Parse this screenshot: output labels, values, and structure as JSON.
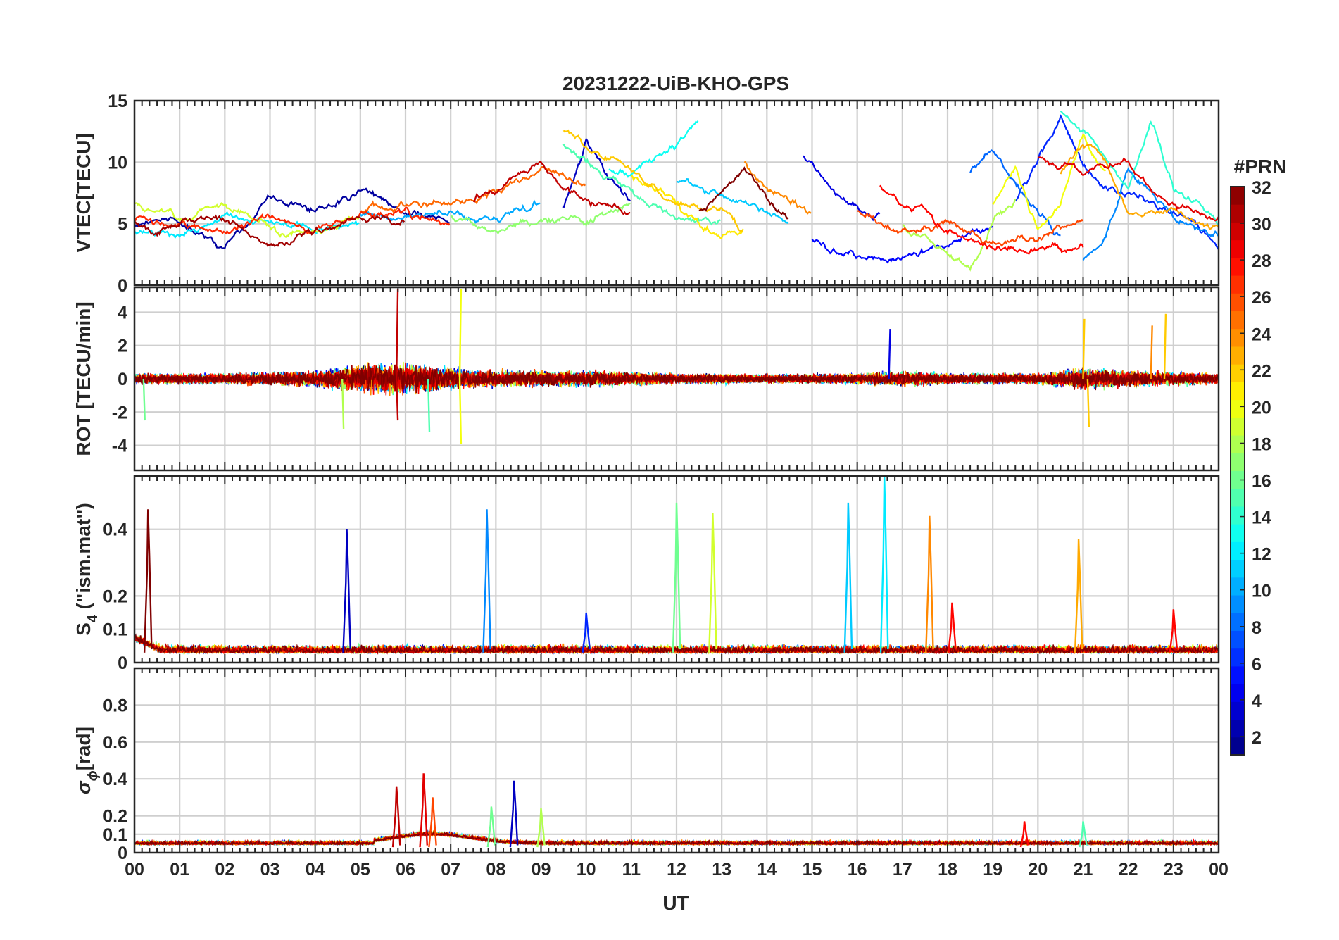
{
  "colors": {
    "text": "#262626",
    "grid": "#cfcfcf",
    "frame": "#262626",
    "background": "#ffffff"
  },
  "colormap": "jet",
  "chart_data": [
    {
      "type": "line",
      "id": "vtec",
      "title": "20231222-UiB-KHO-GPS",
      "ylabel": "VTEC[TECU]",
      "ylim": [
        0,
        15
      ],
      "yticks": [
        0,
        5,
        10,
        15
      ],
      "xlim": [
        0,
        24
      ],
      "grid": true,
      "approx_series": [
        {
          "prn": 2,
          "points": [
            [
              0,
              4.8
            ],
            [
              1,
              5.0
            ],
            [
              2,
              3.0
            ],
            [
              3,
              7.0
            ],
            [
              4,
              6.0
            ],
            [
              5,
              7.5
            ],
            [
              6,
              6.0
            ],
            [
              7,
              5.0
            ]
          ]
        },
        {
          "prn": 3,
          "points": [
            [
              9.5,
              6.5
            ],
            [
              10,
              11.5
            ],
            [
              10.5,
              8.5
            ],
            [
              11,
              7.0
            ]
          ]
        },
        {
          "prn": 4,
          "points": [
            [
              14.8,
              10.5
            ],
            [
              15.5,
              7.5
            ],
            [
              16,
              6.0
            ],
            [
              16.5,
              5.5
            ]
          ]
        },
        {
          "prn": 5,
          "points": [
            [
              15,
              3.5
            ],
            [
              16,
              2.5
            ],
            [
              17,
              2.0
            ],
            [
              18,
              3.5
            ],
            [
              19,
              4.5
            ]
          ]
        },
        {
          "prn": 6,
          "points": [
            [
              19.5,
              7.0
            ],
            [
              20,
              10.0
            ],
            [
              20.5,
              13.5
            ],
            [
              21,
              10.0
            ],
            [
              21.5,
              8.0
            ],
            [
              22.5,
              6.5
            ],
            [
              23.5,
              5.0
            ],
            [
              24,
              3.0
            ]
          ]
        },
        {
          "prn": 8,
          "points": [
            [
              18.5,
              9.0
            ],
            [
              19,
              11.0
            ],
            [
              19.5,
              8.5
            ],
            [
              20,
              6.0
            ],
            [
              20.5,
              4.0
            ]
          ]
        },
        {
          "prn": 9,
          "points": [
            [
              21,
              2.0
            ],
            [
              21.5,
              4.0
            ],
            [
              22,
              9.5
            ],
            [
              22.5,
              7.5
            ],
            [
              23,
              5.5
            ],
            [
              24,
              4.0
            ]
          ]
        },
        {
          "prn": 10,
          "points": [
            [
              5,
              6.0
            ],
            [
              6,
              5.5
            ],
            [
              7,
              6.0
            ],
            [
              8,
              5.5
            ],
            [
              9,
              6.5
            ]
          ]
        },
        {
          "prn": 11,
          "points": [
            [
              12,
              8.5
            ],
            [
              13,
              7.5
            ],
            [
              14,
              6.0
            ],
            [
              14.5,
              5.0
            ]
          ]
        },
        {
          "prn": 12,
          "points": [
            [
              0,
              4.5
            ],
            [
              1,
              4.0
            ],
            [
              2,
              5.5
            ],
            [
              3,
              5.0
            ],
            [
              4,
              4.5
            ],
            [
              5,
              5.0
            ]
          ]
        },
        {
          "prn": 13,
          "points": [
            [
              10.5,
              9.5
            ],
            [
              11,
              9.0
            ],
            [
              12,
              11.5
            ],
            [
              12.5,
              13.5
            ]
          ]
        },
        {
          "prn": 14,
          "points": [
            [
              20.5,
              14.0
            ],
            [
              21,
              12.5
            ],
            [
              22,
              8.0
            ],
            [
              22.5,
              13.5
            ],
            [
              23,
              8.0
            ],
            [
              24,
              5.0
            ]
          ]
        },
        {
          "prn": 15,
          "points": [
            [
              9.5,
              11.5
            ],
            [
              10,
              10.0
            ],
            [
              11,
              7.5
            ],
            [
              12,
              5.5
            ],
            [
              13,
              5.0
            ]
          ]
        },
        {
          "prn": 17,
          "points": [
            [
              7,
              5.5
            ],
            [
              8,
              4.5
            ],
            [
              9,
              5.5
            ],
            [
              10,
              5.0
            ],
            [
              11,
              6.5
            ]
          ]
        },
        {
          "prn": 18,
          "points": [
            [
              17,
              5.0
            ],
            [
              18,
              3.0
            ],
            [
              18.5,
              1.5
            ],
            [
              19,
              5.5
            ],
            [
              19.5,
              7.0
            ]
          ]
        },
        {
          "prn": 19,
          "points": [
            [
              0,
              6.5
            ],
            [
              1,
              5.5
            ],
            [
              2,
              6.5
            ],
            [
              3,
              4.5
            ],
            [
              4,
              4.0
            ],
            [
              5,
              6.0
            ]
          ]
        },
        {
          "prn": 20,
          "points": [
            [
              19,
              6.5
            ],
            [
              19.5,
              9.5
            ],
            [
              20,
              4.5
            ],
            [
              20.5,
              6.5
            ],
            [
              21,
              12.5
            ],
            [
              21.5,
              9.0
            ]
          ]
        },
        {
          "prn": 21,
          "points": [
            [
              11,
              9.0
            ],
            [
              12,
              7.0
            ],
            [
              12.5,
              5.0
            ],
            [
              13,
              4.0
            ],
            [
              13.5,
              4.5
            ]
          ]
        },
        {
          "prn": 22,
          "points": [
            [
              9.5,
              12.5
            ],
            [
              10.5,
              10.5
            ],
            [
              11,
              9.5
            ],
            [
              11.5,
              8.0
            ],
            [
              12,
              6.5
            ],
            [
              13,
              6.0
            ],
            [
              13.5,
              4.0
            ]
          ]
        },
        {
          "prn": 23,
          "points": [
            [
              20.5,
              9.0
            ],
            [
              21,
              12.0
            ],
            [
              21.5,
              10.0
            ],
            [
              22,
              6.0
            ],
            [
              23,
              6.0
            ],
            [
              24,
              4.5
            ]
          ]
        },
        {
          "prn": 24,
          "points": [
            [
              13.5,
              10.0
            ],
            [
              14,
              8.0
            ],
            [
              14.5,
              7.0
            ],
            [
              15,
              6.0
            ]
          ]
        },
        {
          "prn": 25,
          "points": [
            [
              5,
              6.0
            ],
            [
              6,
              6.5
            ],
            [
              7,
              6.5
            ],
            [
              8,
              7.5
            ],
            [
              9,
              9.5
            ],
            [
              10,
              8.0
            ]
          ]
        },
        {
          "prn": 26,
          "points": [
            [
              16,
              6.0
            ],
            [
              17,
              4.0
            ],
            [
              18,
              5.0
            ],
            [
              19,
              3.5
            ],
            [
              20,
              4.0
            ],
            [
              21,
              5.0
            ]
          ]
        },
        {
          "prn": 27,
          "points": [
            [
              0,
              5.5
            ],
            [
              1,
              5.0
            ],
            [
              2,
              4.5
            ],
            [
              3,
              5.5
            ],
            [
              4,
              4.5
            ],
            [
              5,
              5.5
            ],
            [
              6,
              6.0
            ],
            [
              7,
              5.0
            ]
          ]
        },
        {
          "prn": 28,
          "points": [
            [
              16.5,
              8.0
            ],
            [
              17,
              6.5
            ],
            [
              17.5,
              6.0
            ],
            [
              18,
              4.5
            ],
            [
              19,
              3.0
            ],
            [
              20,
              3.0
            ],
            [
              21,
              3.0
            ]
          ]
        },
        {
          "prn": 29,
          "points": [
            [
              20,
              10.5
            ],
            [
              20.5,
              10.0
            ],
            [
              21,
              9.0
            ],
            [
              22,
              10.0
            ],
            [
              22.5,
              7.5
            ],
            [
              23,
              6.5
            ],
            [
              24,
              5.5
            ]
          ]
        },
        {
          "prn": 30,
          "points": [
            [
              7.5,
              7.0
            ],
            [
              8,
              7.5
            ],
            [
              9,
              10.0
            ],
            [
              9.5,
              8.0
            ],
            [
              10,
              7.0
            ],
            [
              11,
              6.0
            ]
          ]
        },
        {
          "prn": 31,
          "points": [
            [
              0,
              5.0
            ],
            [
              0.5,
              4.0
            ],
            [
              1,
              5.0
            ],
            [
              2,
              5.5
            ],
            [
              3,
              3.0
            ],
            [
              4,
              4.5
            ],
            [
              5,
              5.5
            ],
            [
              6,
              5.0
            ]
          ]
        },
        {
          "prn": 32,
          "points": [
            [
              12.5,
              6.0
            ],
            [
              13,
              7.5
            ],
            [
              13.5,
              9.5
            ],
            [
              14,
              7.0
            ],
            [
              14.5,
              5.5
            ]
          ]
        }
      ]
    },
    {
      "type": "line",
      "id": "rot",
      "ylabel": "ROT [TECU/min]",
      "ylim": [
        -5.5,
        5.5
      ],
      "yticks": [
        -4,
        -2,
        0,
        2,
        4
      ],
      "xlim": [
        0,
        24
      ],
      "grid": true,
      "approx_envelope": [
        [
          0,
          1.0
        ],
        [
          2,
          1.0
        ],
        [
          4,
          1.5
        ],
        [
          5,
          2.5
        ],
        [
          6,
          3.0
        ],
        [
          7,
          2.0
        ],
        [
          8,
          1.5
        ],
        [
          10,
          1.5
        ],
        [
          12,
          1.0
        ],
        [
          14,
          0.8
        ],
        [
          16,
          1.0
        ],
        [
          17,
          1.5
        ],
        [
          18,
          1.0
        ],
        [
          20,
          1.0
        ],
        [
          21,
          2.0
        ],
        [
          22,
          1.5
        ],
        [
          24,
          1.0
        ]
      ],
      "approx_spikes": [
        {
          "prn": 30,
          "x": 5.8,
          "y": 5.4
        },
        {
          "prn": 30,
          "x": 5.8,
          "y": -2.5
        },
        {
          "prn": 20,
          "x": 7.2,
          "y": 5.4
        },
        {
          "prn": 20,
          "x": 7.2,
          "y": -3.9
        },
        {
          "prn": 4,
          "x": 16.7,
          "y": 3.0
        },
        {
          "prn": 22,
          "x": 21.0,
          "y": 3.6
        },
        {
          "prn": 22,
          "x": 21.1,
          "y": -2.9
        },
        {
          "prn": 24,
          "x": 22.5,
          "y": 3.2
        },
        {
          "prn": 22,
          "x": 22.8,
          "y": 3.9
        },
        {
          "prn": 15,
          "x": 6.5,
          "y": -3.2
        },
        {
          "prn": 18,
          "x": 4.6,
          "y": -3.0
        },
        {
          "prn": 16,
          "x": 0.2,
          "y": -2.5
        }
      ]
    },
    {
      "type": "line",
      "id": "s4",
      "ylabel": "S",
      "ylabel_sub": "4",
      "ylabel_suffix": " (\"ism.mat\")",
      "ylim": [
        0,
        0.56
      ],
      "yticks": [
        0,
        0.1,
        0.2,
        0.4
      ],
      "yticklabels": [
        "0",
        "0.1",
        "0.2",
        "0.4"
      ],
      "xlim": [
        0,
        24
      ],
      "grid": true,
      "approx_spikes": [
        {
          "prn": 32,
          "x": 0.3,
          "y": 0.46
        },
        {
          "prn": 3,
          "x": 4.7,
          "y": 0.4
        },
        {
          "prn": 9,
          "x": 7.8,
          "y": 0.46
        },
        {
          "prn": 16,
          "x": 12.0,
          "y": 0.48
        },
        {
          "prn": 19,
          "x": 12.8,
          "y": 0.45
        },
        {
          "prn": 11,
          "x": 15.8,
          "y": 0.48
        },
        {
          "prn": 12,
          "x": 16.6,
          "y": 0.56
        },
        {
          "prn": 24,
          "x": 17.6,
          "y": 0.44
        },
        {
          "prn": 23,
          "x": 20.9,
          "y": 0.37
        },
        {
          "prn": 6,
          "x": 10.0,
          "y": 0.15
        },
        {
          "prn": 28,
          "x": 18.1,
          "y": 0.18
        },
        {
          "prn": 28,
          "x": 23.0,
          "y": 0.16
        }
      ]
    },
    {
      "type": "line",
      "id": "sigma_phi",
      "ylabel": "σ",
      "ylabel_sub": "ϕ",
      "ylabel_suffix": "[rad]",
      "ylim": [
        0,
        1.0
      ],
      "yticks": [
        0,
        0.1,
        0.2,
        0.4,
        0.6,
        0.8
      ],
      "yticklabels": [
        "0",
        "0.1",
        "0.2",
        "0.4",
        "0.6",
        "0.8"
      ],
      "xlim": [
        0,
        24
      ],
      "xlabel": "UT",
      "xticks": [
        0,
        1,
        2,
        3,
        4,
        5,
        6,
        7,
        8,
        9,
        10,
        11,
        12,
        13,
        14,
        15,
        16,
        17,
        18,
        19,
        20,
        21,
        22,
        23,
        24
      ],
      "xticklabels": [
        "00",
        "01",
        "02",
        "03",
        "04",
        "05",
        "06",
        "07",
        "08",
        "09",
        "10",
        "11",
        "12",
        "13",
        "14",
        "15",
        "16",
        "17",
        "18",
        "19",
        "20",
        "21",
        "22",
        "23",
        "00"
      ],
      "grid": true,
      "approx_spikes": [
        {
          "prn": 30,
          "x": 5.8,
          "y": 0.36
        },
        {
          "prn": 29,
          "x": 6.4,
          "y": 0.43
        },
        {
          "prn": 26,
          "x": 6.6,
          "y": 0.3
        },
        {
          "prn": 3,
          "x": 8.4,
          "y": 0.39
        },
        {
          "prn": 16,
          "x": 7.9,
          "y": 0.25
        },
        {
          "prn": 18,
          "x": 9.0,
          "y": 0.24
        },
        {
          "prn": 28,
          "x": 19.7,
          "y": 0.17
        },
        {
          "prn": 15,
          "x": 21.0,
          "y": 0.17
        }
      ]
    },
    {
      "type": "colorbar",
      "id": "prn-colorbar",
      "title": "#PRN",
      "range": [
        1,
        32
      ],
      "ticks": [
        2,
        4,
        6,
        8,
        10,
        12,
        14,
        16,
        18,
        20,
        22,
        24,
        26,
        28,
        30,
        32
      ],
      "ticklabels": [
        "2",
        "4",
        "6",
        "8",
        "10",
        "12",
        "14",
        "16",
        "18",
        "20",
        "22",
        "24",
        "26",
        "28",
        "30",
        "32"
      ]
    }
  ]
}
